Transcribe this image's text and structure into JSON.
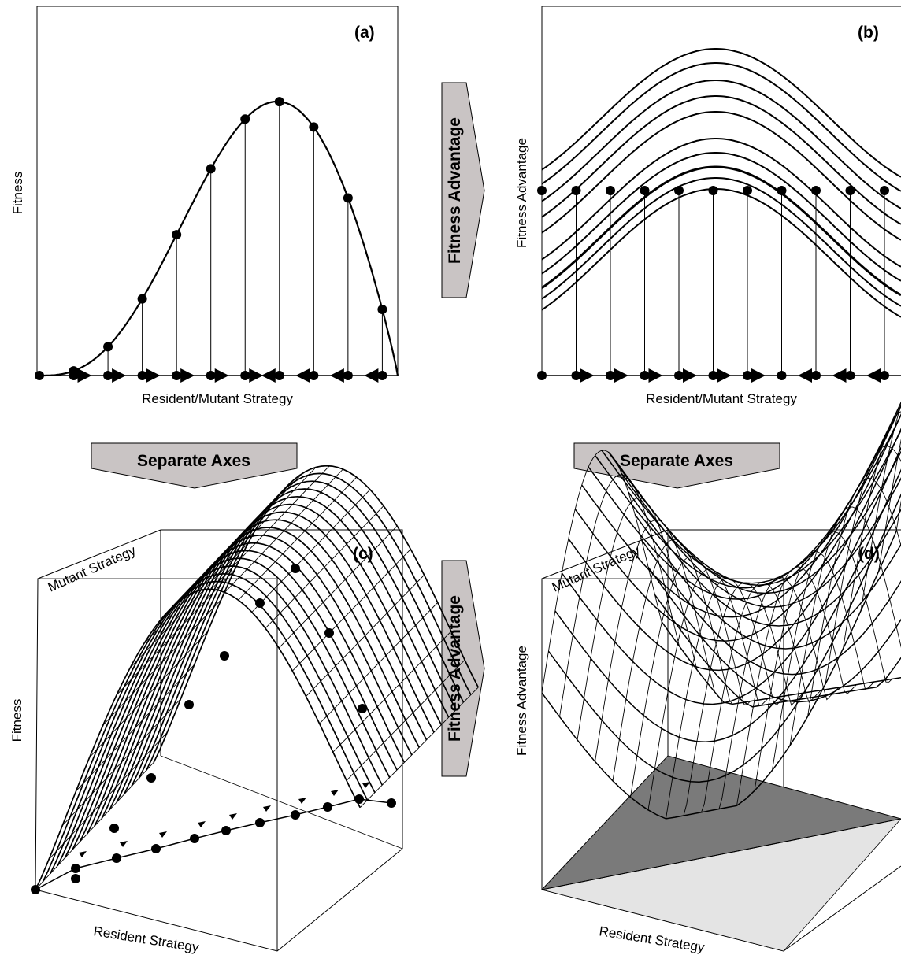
{
  "panels": {
    "a": {
      "label": "(a)",
      "ylabel": "Fitness",
      "xlabel": "Resident/Mutant Strategy"
    },
    "b": {
      "label": "(b)",
      "ylabel": "Fitness Advantage",
      "xlabel": "Resident/Mutant Strategy"
    },
    "c": {
      "label": "(c)",
      "ylabel": "Fitness",
      "xlabel": "Resident Strategy",
      "zlabel": "Mutant Strategy"
    },
    "d": {
      "label": "(d)",
      "ylabel": "Fitness Advantage",
      "xlabel": "Resident Strategy",
      "zlabel": "Mutant Strategy"
    }
  },
  "connectors": {
    "top_arrow": "Fitness Advantage",
    "bottom_arrow": "Fitness Advantage",
    "left_down": "Separate Axes",
    "right_down": "Separate Axes"
  },
  "colors": {
    "line": "#000000",
    "arrow_fill": "#c9c4c4",
    "shade_dark": "#7a7a7a",
    "shade_light": "#d8d8d8"
  }
}
